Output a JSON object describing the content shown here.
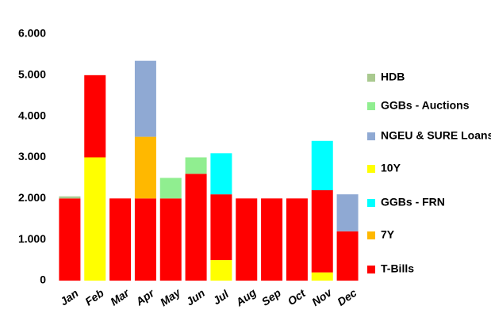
{
  "chart_data": {
    "type": "stacked-bar",
    "categories": [
      "Jan",
      "Feb",
      "Mar",
      "Apr",
      "May",
      "Jun",
      "Jul",
      "Aug",
      "Sep",
      "Oct",
      "Nov",
      "Dec"
    ],
    "series": [
      {
        "name": "HDB",
        "color": "#a9c98f",
        "values": [
          50,
          0,
          0,
          0,
          0,
          0,
          0,
          0,
          0,
          0,
          0,
          0
        ]
      },
      {
        "name": "GGBs - Auctions",
        "color": "#90ee90",
        "values": [
          0,
          0,
          0,
          0,
          500,
          400,
          0,
          0,
          0,
          0,
          0,
          0
        ]
      },
      {
        "name": "NGEU & SURE Loans",
        "color": "#8fa9d3",
        "values": [
          0,
          0,
          0,
          1850,
          0,
          0,
          0,
          0,
          0,
          0,
          0,
          900
        ]
      },
      {
        "name": "10Y",
        "color": "#ffff00",
        "values": [
          0,
          3000,
          0,
          0,
          0,
          0,
          500,
          0,
          0,
          0,
          200,
          0
        ]
      },
      {
        "name": "GGBs - FRN",
        "color": "#00ffff",
        "values": [
          0,
          0,
          0,
          0,
          0,
          0,
          1000,
          0,
          0,
          0,
          1200,
          0
        ]
      },
      {
        "name": "7Y",
        "color": "#ffb800",
        "values": [
          0,
          0,
          0,
          1500,
          0,
          0,
          0,
          0,
          0,
          0,
          0,
          0
        ]
      },
      {
        "name": "T-Bills",
        "color": "#ff0000",
        "values": [
          2000,
          2000,
          2000,
          2000,
          2000,
          2600,
          1600,
          2000,
          2000,
          2000,
          2000,
          1200
        ]
      }
    ],
    "ylim": [
      0,
      6000
    ],
    "yticks": [
      0,
      {
        "value": 1000,
        "label": "1.000"
      },
      {
        "value": 2000,
        "label": "2.000"
      },
      {
        "value": 3000,
        "label": "3.000"
      },
      {
        "value": 4000,
        "label": "4.000"
      },
      {
        "value": 5000,
        "label": "5.000"
      },
      {
        "value": 6000,
        "label": "6.000"
      }
    ]
  }
}
